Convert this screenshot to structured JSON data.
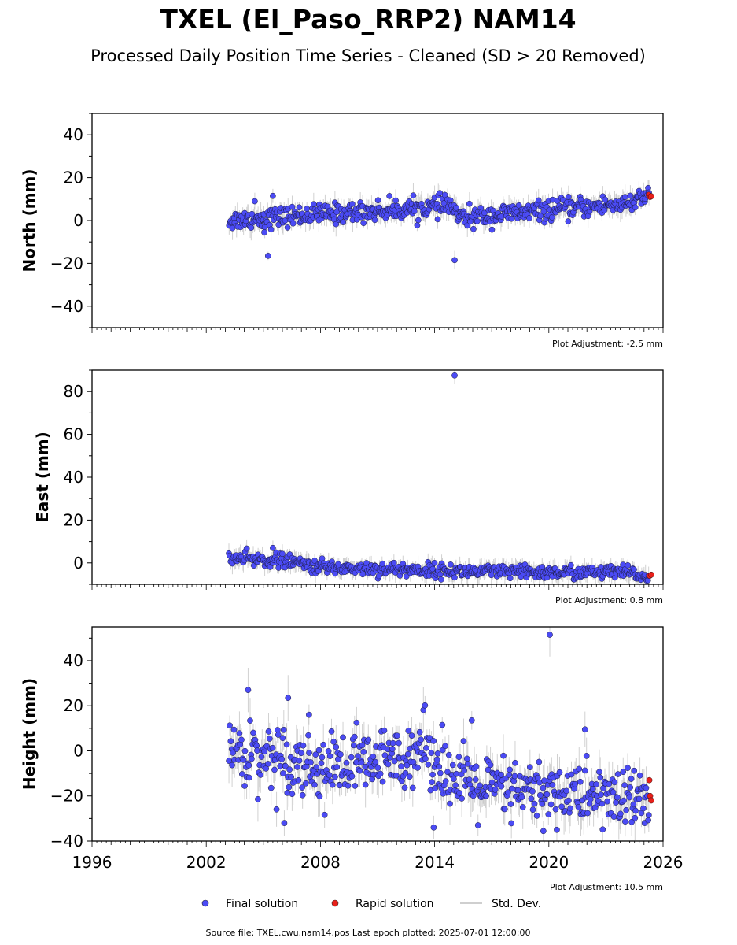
{
  "title": "TXEL (El_Paso_RRP2) NAM14",
  "subtitle": "Processed Daily Position Time Series - Cleaned (SD > 20 Removed)",
  "footer": "Source file: TXEL.cwu.nam14.pos  Last epoch plotted: 2025-07-01 12:00:00",
  "legend": [
    {
      "label": "Final solution",
      "color": "#4b4bf5"
    },
    {
      "label": "Rapid solution",
      "color": "#e8201a"
    },
    {
      "label": "Std. Dev.",
      "color": "#cfcfcf"
    }
  ],
  "chart_data": [
    {
      "type": "scatter",
      "component": "north",
      "ylabel": "North (mm)",
      "adjustment": "Plot Adjustment: -2.5 mm",
      "xlim": [
        1996,
        2026
      ],
      "ylim": [
        -50,
        50
      ],
      "yticks": [
        -40,
        -20,
        0,
        20,
        40
      ],
      "span": [
        2003.2,
        2025.25
      ],
      "trend": [
        [
          2003.2,
          0
        ],
        [
          2008.0,
          3
        ],
        [
          2012.0,
          5
        ],
        [
          2014.9,
          7
        ],
        [
          2015.3,
          1
        ],
        [
          2019.0,
          4
        ],
        [
          2023.0,
          7
        ],
        [
          2024.8,
          9
        ],
        [
          2025.2,
          12
        ]
      ],
      "scatter": 2.3,
      "sd": 3.5,
      "outliers": [
        [
          2004.55,
          9.0
        ],
        [
          2005.05,
          -5.5
        ],
        [
          2005.25,
          -16.5
        ],
        [
          2005.5,
          11.5
        ],
        [
          2015.05,
          -18.5
        ]
      ],
      "rapid": [
        [
          2025.25,
          12.0
        ],
        [
          2025.32,
          11.0
        ],
        [
          2025.38,
          11.3
        ]
      ]
    },
    {
      "type": "scatter",
      "component": "east",
      "ylabel": "East (mm)",
      "adjustment": "Plot Adjustment: 0.8 mm",
      "xlim": [
        1996,
        2026
      ],
      "ylim": [
        -10,
        90
      ],
      "yticks": [
        0,
        20,
        40,
        60,
        80
      ],
      "span": [
        2003.2,
        2025.25
      ],
      "trend": [
        [
          2003.2,
          2
        ],
        [
          2006.0,
          1
        ],
        [
          2008.0,
          -2
        ],
        [
          2012.0,
          -3
        ],
        [
          2016.0,
          -4
        ],
        [
          2020.0,
          -4.5
        ],
        [
          2024.0,
          -4.5
        ],
        [
          2025.2,
          -6.5
        ]
      ],
      "scatter": 1.6,
      "sd": 3.0,
      "outliers": [
        [
          2005.5,
          7.0
        ],
        [
          2015.05,
          87.5
        ]
      ],
      "rapid": [
        [
          2025.3,
          -6.0
        ],
        [
          2025.38,
          -5.5
        ]
      ]
    },
    {
      "type": "scatter",
      "component": "height",
      "ylabel": "Height (mm)",
      "adjustment": "Plot Adjustment: 10.5 mm",
      "xlim": [
        1996,
        2026
      ],
      "ylim": [
        -40,
        55
      ],
      "yticks": [
        -40,
        -20,
        0,
        20,
        40
      ],
      "xticks": [
        1996,
        2002,
        2008,
        2014,
        2020,
        2026
      ],
      "span": [
        2003.2,
        2025.25
      ],
      "trend": [
        [
          2003.2,
          0
        ],
        [
          2006.0,
          -3
        ],
        [
          2008.0,
          -8
        ],
        [
          2011.0,
          -6
        ],
        [
          2013.5,
          2
        ],
        [
          2015.0,
          -14
        ],
        [
          2018.0,
          -18
        ],
        [
          2021.0,
          -19
        ],
        [
          2025.2,
          -22
        ]
      ],
      "scatter": 7.0,
      "sd": 6.0,
      "outliers": [
        [
          2004.2,
          27.0
        ],
        [
          2006.3,
          23.5
        ],
        [
          2007.4,
          16.0
        ],
        [
          2009.9,
          12.5
        ],
        [
          2014.4,
          11.5
        ],
        [
          2015.95,
          13.5
        ],
        [
          2020.05,
          51.5
        ],
        [
          2021.9,
          9.5
        ],
        [
          2013.95,
          -34.0
        ],
        [
          2006.1,
          -32.0
        ]
      ],
      "rapid": [
        [
          2025.28,
          -13.0
        ],
        [
          2025.32,
          -20.0
        ],
        [
          2025.38,
          -22.0
        ]
      ]
    }
  ]
}
